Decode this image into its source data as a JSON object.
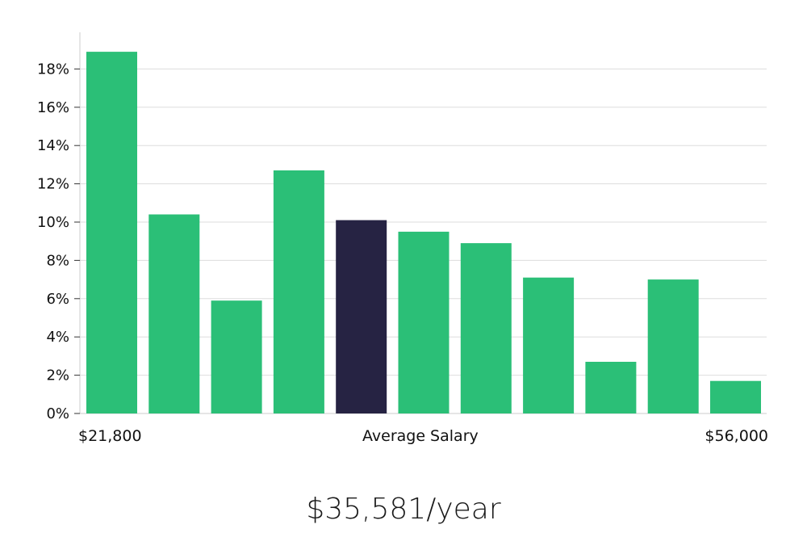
{
  "chart_data": {
    "type": "bar",
    "values": [
      18.9,
      10.4,
      5.9,
      12.7,
      10.1,
      9.5,
      8.9,
      7.1,
      2.7,
      7.0,
      1.7
    ],
    "highlight_index": 4,
    "y_ticks": [
      "0%",
      "2%",
      "4%",
      "6%",
      "8%",
      "10%",
      "12%",
      "14%",
      "16%",
      "18%"
    ],
    "ylim": [
      0,
      20
    ],
    "x_min_label": "$21,800",
    "x_center_label": "Average Salary",
    "x_max_label": "$56,000",
    "grid": true,
    "colors": {
      "bar": "#2bbf77",
      "highlight": "#262343",
      "grid": "#dddddd",
      "axis": "#cccccc"
    }
  },
  "salary_caption": "$35,581/year"
}
